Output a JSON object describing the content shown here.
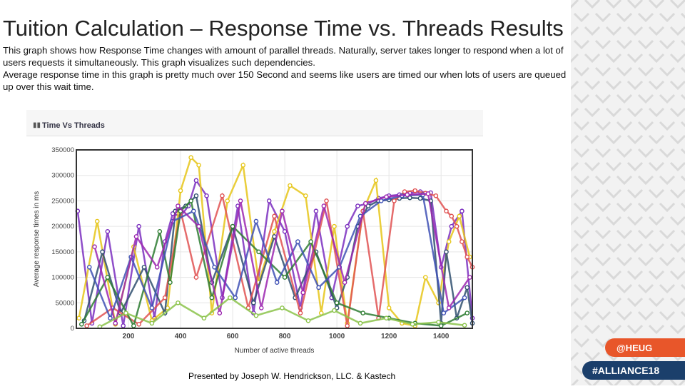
{
  "slide": {
    "title": "Tuition Calculation – Response Time vs. Threads Results",
    "paragraph1": "This graph shows how Response Time changes with amount of parallel threads. Naturally, server takes longer to respond when a lot of users requests it simultaneously. This graph visualizes such dependencies.",
    "paragraph2": "Average response time in this graph is pretty much over 150 Second and seems like users are timed our when lots of users are queued up over this wait time.",
    "footer": "Presented by Joseph W. Hendrickson, LLC. & Kastech",
    "badges": {
      "heug": "@HEUG",
      "alliance": "#ALLIANCE18"
    }
  },
  "panel": {
    "title": "Time Vs Threads",
    "icon": "bar-chart-icon"
  },
  "chart_data": {
    "type": "line",
    "title": "Time Vs Threads",
    "xlabel": "Number of active threads",
    "ylabel": "Average response times in ms",
    "xlim": [
      0,
      1520
    ],
    "ylim": [
      0,
      350000
    ],
    "x_ticks": [
      200,
      400,
      600,
      800,
      1000,
      1200,
      1400
    ],
    "y_ticks": [
      0,
      50000,
      100000,
      150000,
      200000,
      250000,
      300000,
      350000
    ],
    "grid": true,
    "legend": "none",
    "colors": [
      "#7b2fbf",
      "#e6c619",
      "#3f51b5",
      "#e05252",
      "#2e7d32",
      "#2f4f6f",
      "#9c27b0",
      "#8bc34a"
    ],
    "series": [
      {
        "color": "#7b2fbf",
        "x": [
          5,
          60,
          120,
          180,
          240,
          300,
          340,
          370,
          400,
          430,
          460,
          500,
          560,
          620,
          680,
          740,
          800,
          860,
          920,
          980,
          1040,
          1080,
          1120,
          1160,
          1200,
          1240,
          1280,
          1320,
          1360,
          1400,
          1440,
          1480,
          1520
        ],
        "y": [
          230000,
          10000,
          190000,
          5000,
          200000,
          20000,
          170000,
          225000,
          220000,
          240000,
          290000,
          260000,
          60000,
          240000,
          30000,
          250000,
          190000,
          40000,
          230000,
          60000,
          200000,
          240000,
          245000,
          255000,
          260000,
          262000,
          265000,
          268000,
          266000,
          120000,
          200000,
          230000,
          20000
        ]
      },
      {
        "color": "#e6c619",
        "x": [
          10,
          80,
          150,
          220,
          290,
          350,
          400,
          440,
          470,
          520,
          580,
          640,
          700,
          760,
          820,
          880,
          940,
          990,
          1040,
          1100,
          1150,
          1200,
          1250,
          1300,
          1340,
          1390,
          1430,
          1470,
          1510
        ],
        "y": [
          20000,
          210000,
          8000,
          160000,
          15000,
          40000,
          270000,
          335000,
          320000,
          30000,
          250000,
          320000,
          90000,
          190000,
          280000,
          260000,
          30000,
          200000,
          10000,
          230000,
          290000,
          40000,
          10000,
          5000,
          100000,
          50000,
          170000,
          220000,
          140000
        ]
      },
      {
        "color": "#2f4f6f",
        "x": [
          30,
          100,
          170,
          260,
          340,
          380,
          420,
          460,
          520,
          600,
          680,
          760,
          840,
          920,
          1000,
          1040,
          1080,
          1120,
          1160,
          1200,
          1240,
          1280,
          1320,
          1360,
          1400,
          1420,
          1460,
          1500,
          1520
        ],
        "y": [
          15000,
          150000,
          30000,
          120000,
          30000,
          230000,
          240000,
          260000,
          90000,
          200000,
          50000,
          180000,
          60000,
          150000,
          40000,
          100000,
          200000,
          240000,
          250000,
          252000,
          255000,
          256000,
          255000,
          250000,
          10000,
          150000,
          20000,
          80000,
          10000
        ]
      },
      {
        "color": "#e05252",
        "x": [
          40,
          140,
          240,
          340,
          400,
          460,
          560,
          660,
          760,
          860,
          960,
          1040,
          1100,
          1160,
          1220,
          1260,
          1300,
          1340,
          1380,
          1420,
          1440,
          1460,
          1480,
          1500,
          1520
        ],
        "y": [
          5000,
          40000,
          8000,
          60000,
          230000,
          100000,
          260000,
          40000,
          220000,
          30000,
          250000,
          5000,
          230000,
          20000,
          250000,
          268000,
          270000,
          265000,
          260000,
          230000,
          220000,
          200000,
          170000,
          140000,
          120000
        ]
      },
      {
        "color": "#2e7d32",
        "x": [
          20,
          120,
          220,
          320,
          360,
          400,
          440,
          520,
          600,
          700,
          800,
          900,
          1000,
          1100,
          1200,
          1300,
          1400,
          1500
        ],
        "y": [
          8000,
          100000,
          5000,
          190000,
          90000,
          230000,
          250000,
          60000,
          200000,
          150000,
          100000,
          170000,
          50000,
          30000,
          20000,
          10000,
          5000,
          30000
        ]
      },
      {
        "color": "#3f51b5",
        "x": [
          50,
          130,
          210,
          290,
          370,
          450,
          530,
          610,
          690,
          770,
          850,
          930,
          1010,
          1090,
          1170,
          1250,
          1330,
          1410,
          1490
        ],
        "y": [
          120000,
          20000,
          140000,
          40000,
          210000,
          230000,
          120000,
          60000,
          210000,
          90000,
          170000,
          80000,
          120000,
          220000,
          250000,
          260000,
          262000,
          30000,
          60000
        ]
      },
      {
        "color": "#9c27b0",
        "x": [
          70,
          150,
          230,
          310,
          390,
          470,
          550,
          630,
          710,
          790,
          870,
          950,
          1030,
          1110,
          1190,
          1270,
          1350,
          1430,
          1510
        ],
        "y": [
          160000,
          10000,
          180000,
          120000,
          240000,
          200000,
          30000,
          250000,
          40000,
          230000,
          70000,
          240000,
          90000,
          245000,
          258000,
          262000,
          264000,
          40000,
          100000
        ]
      },
      {
        "color": "#8bc34a",
        "x": [
          90,
          190,
          290,
          390,
          490,
          590,
          690,
          790,
          890,
          990,
          1090,
          1190,
          1290,
          1390,
          1490
        ],
        "y": [
          3000,
          30000,
          10000,
          50000,
          20000,
          60000,
          25000,
          40000,
          15000,
          35000,
          10000,
          20000,
          8000,
          12000,
          6000
        ]
      }
    ]
  }
}
